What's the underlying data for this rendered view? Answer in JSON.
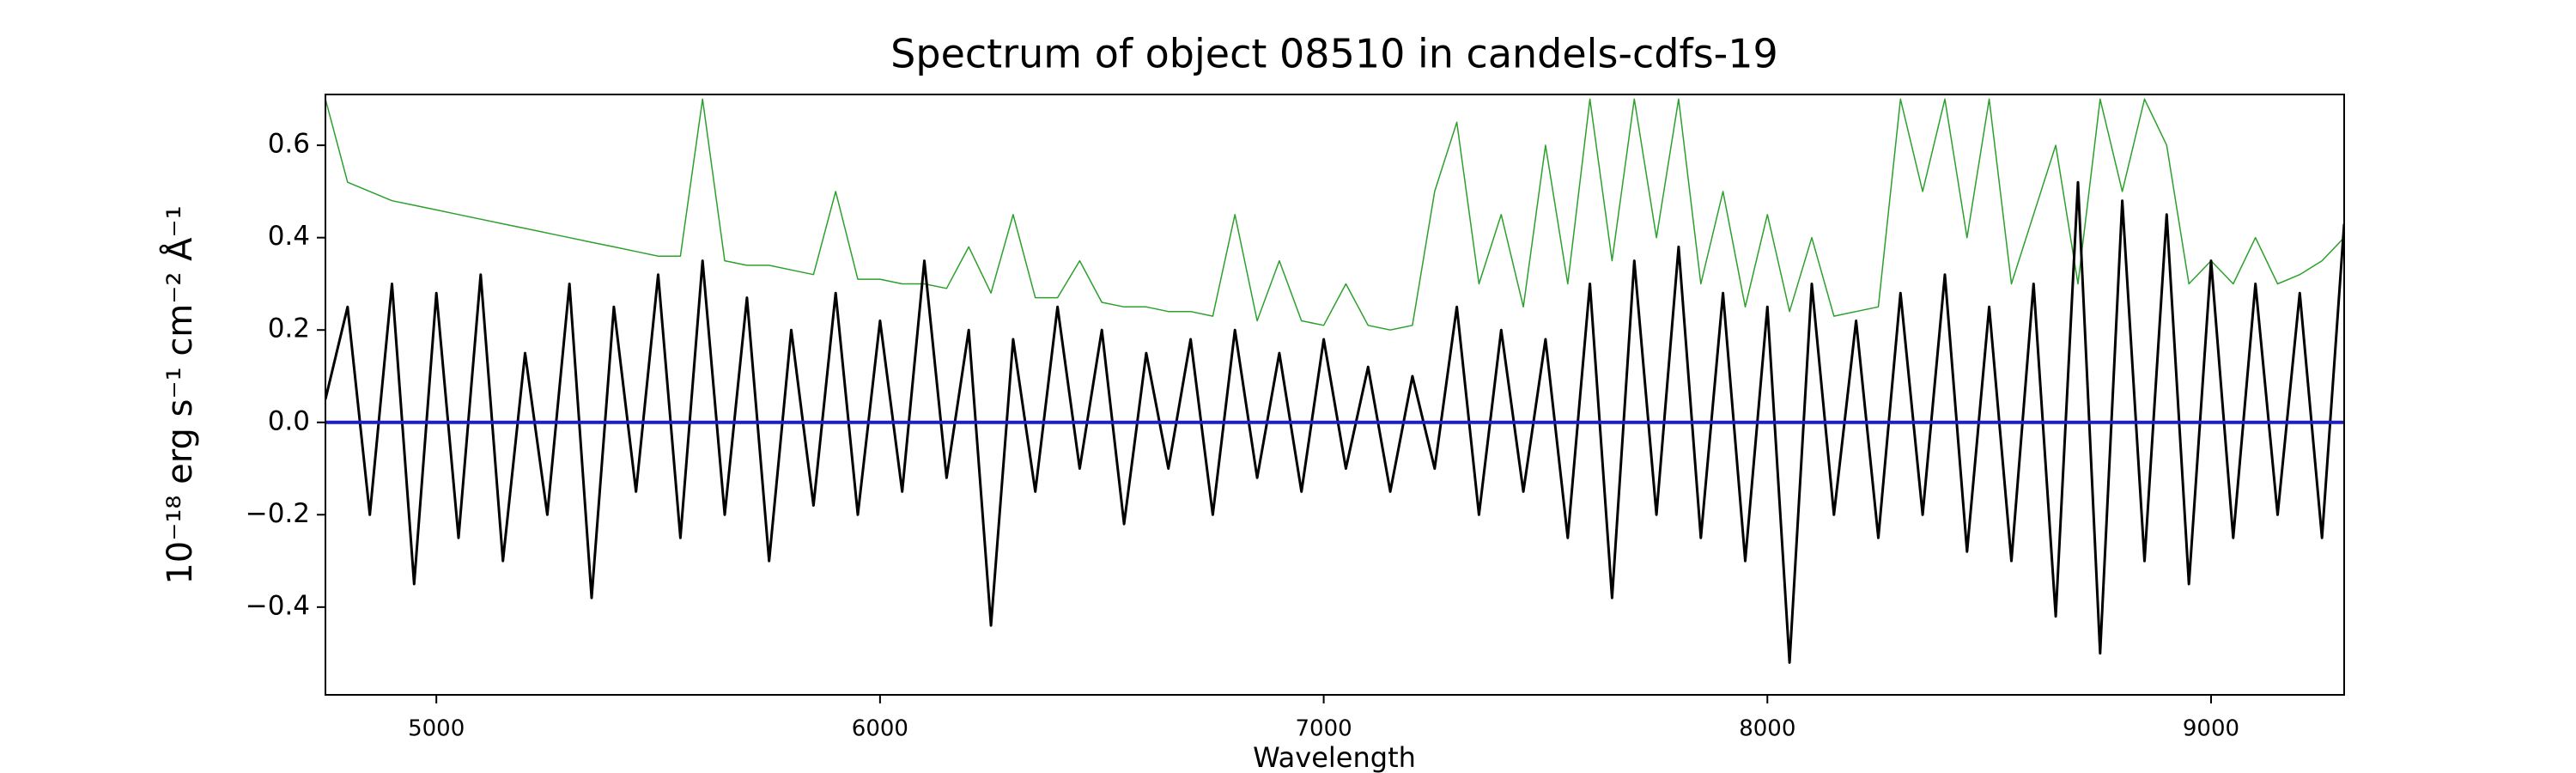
{
  "chart_data": {
    "type": "line",
    "title": "Spectrum of object 08510 in candels-cdfs-19",
    "xlabel": "Wavelength",
    "ylabel": "10⁻¹⁸ erg s⁻¹ cm⁻² Å⁻¹",
    "x": [
      4750,
      4800,
      4850,
      4900,
      4950,
      5000,
      5050,
      5100,
      5150,
      5200,
      5250,
      5300,
      5350,
      5400,
      5450,
      5500,
      5550,
      5600,
      5650,
      5700,
      5750,
      5800,
      5850,
      5900,
      5950,
      6000,
      6050,
      6100,
      6150,
      6200,
      6250,
      6300,
      6350,
      6400,
      6450,
      6500,
      6550,
      6600,
      6650,
      6700,
      6750,
      6800,
      6850,
      6900,
      6950,
      7000,
      7050,
      7100,
      7150,
      7200,
      7250,
      7300,
      7350,
      7400,
      7450,
      7500,
      7550,
      7600,
      7650,
      7700,
      7750,
      7800,
      7850,
      7900,
      7950,
      8000,
      8050,
      8100,
      8150,
      8200,
      8250,
      8300,
      8350,
      8400,
      8450,
      8500,
      8550,
      8600,
      8650,
      8700,
      8750,
      8800,
      8850,
      8900,
      8950,
      9000,
      9050,
      9100,
      9150,
      9200,
      9250,
      9300
    ],
    "series": [
      {
        "color": "#2ca02c",
        "values": [
          0.7,
          0.52,
          0.5,
          0.48,
          0.47,
          0.46,
          0.45,
          0.44,
          0.43,
          0.42,
          0.41,
          0.4,
          0.39,
          0.38,
          0.37,
          0.36,
          0.36,
          0.7,
          0.35,
          0.34,
          0.34,
          0.33,
          0.32,
          0.5,
          0.31,
          0.31,
          0.3,
          0.3,
          0.29,
          0.38,
          0.28,
          0.45,
          0.27,
          0.27,
          0.35,
          0.26,
          0.25,
          0.25,
          0.24,
          0.24,
          0.23,
          0.45,
          0.22,
          0.35,
          0.22,
          0.21,
          0.3,
          0.21,
          0.2,
          0.21,
          0.5,
          0.65,
          0.3,
          0.45,
          0.25,
          0.6,
          0.3,
          0.7,
          0.35,
          0.7,
          0.4,
          0.7,
          0.3,
          0.5,
          0.25,
          0.45,
          0.24,
          0.4,
          0.23,
          0.24,
          0.25,
          0.7,
          0.5,
          0.7,
          0.4,
          0.7,
          0.3,
          0.45,
          0.6,
          0.3,
          0.7,
          0.5,
          0.7,
          0.6,
          0.3,
          0.35,
          0.3,
          0.4,
          0.3,
          0.32,
          0.35,
          0.4
        ]
      },
      {
        "color": "#000000",
        "values": [
          0.05,
          0.25,
          -0.2,
          0.3,
          -0.35,
          0.28,
          -0.25,
          0.32,
          -0.3,
          0.15,
          -0.2,
          0.3,
          -0.38,
          0.25,
          -0.15,
          0.32,
          -0.25,
          0.35,
          -0.2,
          0.27,
          -0.3,
          0.2,
          -0.18,
          0.28,
          -0.2,
          0.22,
          -0.15,
          0.35,
          -0.12,
          0.2,
          -0.44,
          0.18,
          -0.15,
          0.25,
          -0.1,
          0.2,
          -0.22,
          0.15,
          -0.1,
          0.18,
          -0.2,
          0.2,
          -0.12,
          0.15,
          -0.15,
          0.18,
          -0.1,
          0.12,
          -0.15,
          0.1,
          -0.1,
          0.25,
          -0.2,
          0.2,
          -0.15,
          0.18,
          -0.25,
          0.3,
          -0.38,
          0.35,
          -0.2,
          0.38,
          -0.25,
          0.28,
          -0.3,
          0.25,
          -0.52,
          0.3,
          -0.2,
          0.22,
          -0.25,
          0.28,
          -0.2,
          0.32,
          -0.28,
          0.25,
          -0.3,
          0.3,
          -0.42,
          0.52,
          -0.5,
          0.48,
          -0.3,
          0.45,
          -0.35,
          0.35,
          -0.25,
          0.3,
          -0.2,
          0.28,
          -0.25,
          0.43
        ]
      },
      {
        "color": "#1f1fbf",
        "values": [
          0,
          0,
          0,
          0,
          0,
          0,
          0,
          0,
          0,
          0,
          0,
          0,
          0,
          0,
          0,
          0,
          0,
          0,
          0,
          0,
          0,
          0,
          0,
          0,
          0,
          0,
          0,
          0,
          0,
          0,
          0,
          0,
          0,
          0,
          0,
          0,
          0,
          0,
          0,
          0,
          0,
          0,
          0,
          0,
          0,
          0,
          0,
          0,
          0,
          0,
          0,
          0,
          0,
          0,
          0,
          0,
          0,
          0,
          0,
          0,
          0,
          0,
          0,
          0,
          0,
          0,
          0,
          0,
          0,
          0,
          0,
          0,
          0,
          0,
          0,
          0,
          0,
          0,
          0,
          0,
          0,
          0,
          0,
          0,
          0,
          0,
          0,
          0,
          0,
          0,
          0,
          0
        ]
      }
    ],
    "xlim": [
      4750,
      9300
    ],
    "ylim": [
      -0.59,
      0.71
    ],
    "xticks": [
      5000,
      6000,
      7000,
      8000,
      9000
    ],
    "yticks": [
      {
        "value": -0.4,
        "label": "−0.4"
      },
      {
        "value": -0.2,
        "label": "−0.2"
      },
      {
        "value": 0,
        "label": "0.0"
      },
      0.2,
      0.4,
      0.6
    ]
  }
}
